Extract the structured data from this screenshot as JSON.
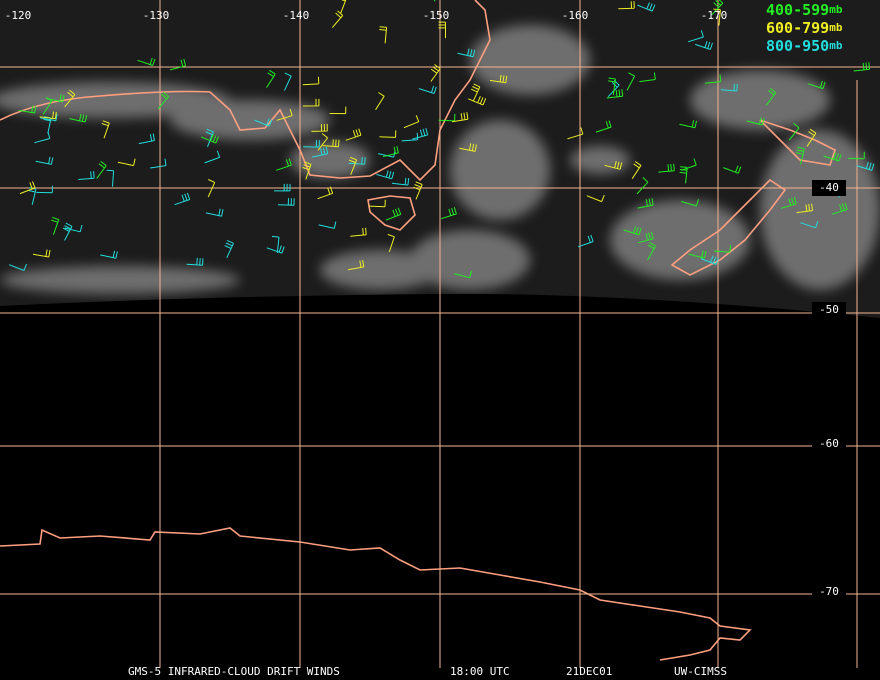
{
  "map": {
    "longitude_labels": [
      "-120",
      "-130",
      "-140",
      "-150",
      "-160",
      "-170"
    ],
    "latitude_labels": [
      "-40",
      "-50",
      "-60",
      "-70"
    ],
    "legend": [
      {
        "range": "400-599",
        "unit": "mb",
        "color": "#22ee22"
      },
      {
        "range": "600-799",
        "unit": "mb",
        "color": "#eeee22"
      },
      {
        "range": "800-950",
        "unit": "mb",
        "color": "#22dddd"
      }
    ],
    "footer": [
      "GMS-5 INFRARED-CLOUD DRIFT WINDS",
      "18:00 UTC",
      "21DEC01",
      "UW-CIMSS"
    ]
  }
}
